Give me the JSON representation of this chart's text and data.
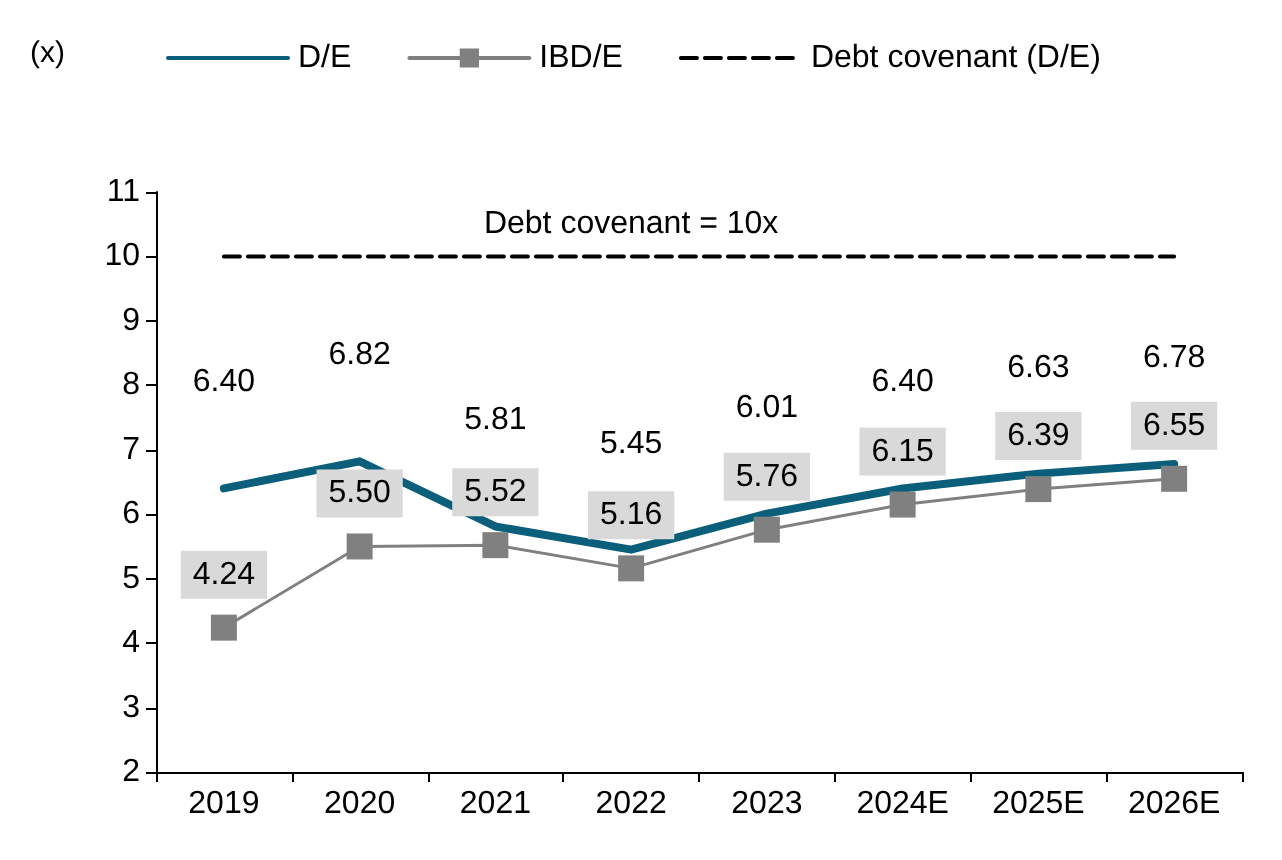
{
  "chart_data": {
    "type": "line",
    "ylabel": "(x)",
    "categories": [
      "2019",
      "2020",
      "2021",
      "2022",
      "2023",
      "2024E",
      "2025E",
      "2026E"
    ],
    "series": [
      {
        "name": "D/E",
        "color": "#0b5f7a",
        "values": [
          6.4,
          6.82,
          5.81,
          5.45,
          6.01,
          6.4,
          6.63,
          6.78
        ],
        "value_labels": [
          "6.40",
          "6.82",
          "5.81",
          "5.45",
          "6.01",
          "6.40",
          "6.63",
          "6.78"
        ],
        "marker": "none",
        "line_style": "solid"
      },
      {
        "name": "IBD/E",
        "color": "#808080",
        "values": [
          4.24,
          5.5,
          5.52,
          5.16,
          5.76,
          6.15,
          6.39,
          6.55
        ],
        "value_labels": [
          "4.24",
          "5.50",
          "5.52",
          "5.16",
          "5.76",
          "6.15",
          "6.39",
          "6.55"
        ],
        "marker": "square",
        "line_style": "solid"
      },
      {
        "name": "Debt covenant (D/E)",
        "color": "#000000",
        "values": [
          10,
          10,
          10,
          10,
          10,
          10,
          10,
          10
        ],
        "marker": "none",
        "line_style": "dashed"
      }
    ],
    "annotations": [
      {
        "text": "Debt covenant = 10x",
        "x": "2022",
        "y": 10
      }
    ],
    "ylim": [
      2,
      11
    ],
    "yticks": [
      2,
      3,
      4,
      5,
      6,
      7,
      8,
      9,
      10,
      11
    ],
    "grid": false,
    "legend": "top"
  }
}
